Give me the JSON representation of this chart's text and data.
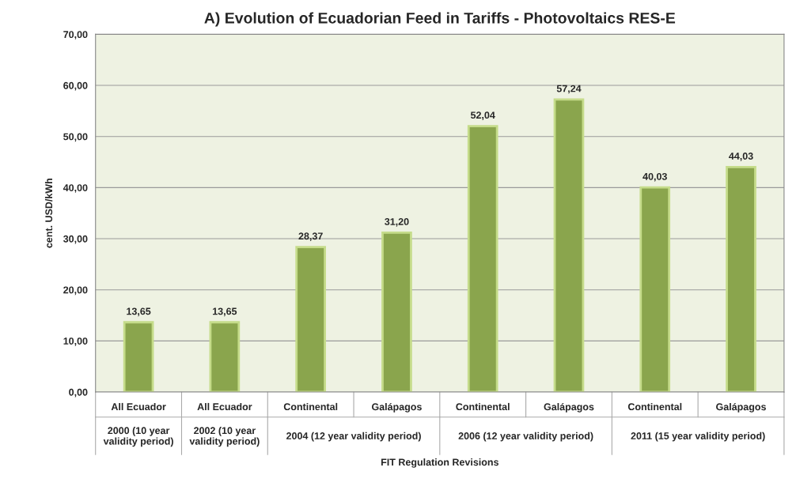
{
  "chart_data": {
    "type": "bar",
    "title": "A) Evolution of Ecuadorian Feed in Tariffs - Photovoltaics RES-E",
    "xlabel": "FIT Regulation Revisions",
    "ylabel": "cent. USD/kWh",
    "categories": [
      "All Ecuador",
      "All Ecuador",
      "Continental",
      "Galápagos",
      "Continental",
      "Galápagos",
      "Continental",
      "Galápagos"
    ],
    "values": [
      13.65,
      13.65,
      28.37,
      31.2,
      52.04,
      57.24,
      40.03,
      44.03
    ],
    "value_labels": [
      "13,65",
      "13,65",
      "28,37",
      "31,20",
      "52,04",
      "57,24",
      "40,03",
      "44,03"
    ],
    "color": "#8fb43e",
    "ylim": [
      0,
      70
    ],
    "yticks": [
      {
        "value": 0,
        "label": "0,00"
      },
      {
        "value": 10,
        "label": "10,00"
      },
      {
        "value": 20,
        "label": "20,00"
      },
      {
        "value": 30,
        "label": "30,00"
      },
      {
        "value": 40,
        "label": "40,00"
      },
      {
        "value": 50,
        "label": "50,00"
      },
      {
        "value": 60,
        "label": "60,00"
      },
      {
        "value": 70,
        "label": "70,00"
      }
    ],
    "grid": "y",
    "legend": false,
    "annotations": [
      "2000 (10 year validity period)",
      "2002 (10 year validity period)",
      "2004 (12 year validity period)",
      "2006 (12 year validity period)",
      "2011 (15 year validity period)"
    ]
  }
}
